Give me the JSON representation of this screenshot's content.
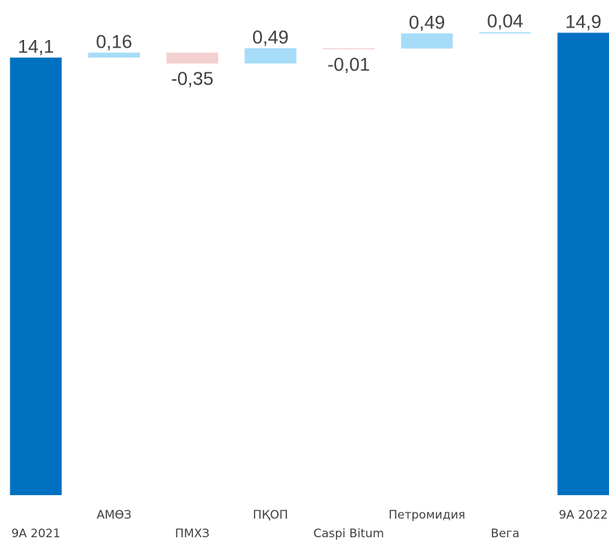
{
  "chart_data": {
    "type": "waterfall",
    "title": "",
    "xlabel": "",
    "ylabel": "",
    "ylim": [
      0,
      14.9
    ],
    "grid": false,
    "legend": "none",
    "categories": [
      "9A 2021",
      "АМӨЗ",
      "ПМХЗ",
      "ПҚОП",
      "Caspi Bitum",
      "Петромидия",
      "Вега",
      "9A 2022"
    ],
    "values": [
      14.1,
      0.16,
      -0.35,
      0.49,
      -0.01,
      0.49,
      0.04,
      14.9
    ],
    "kinds": [
      "total",
      "delta",
      "delta",
      "delta",
      "delta",
      "delta",
      "delta",
      "total"
    ],
    "value_labels": [
      "14,1",
      "0,16",
      "-0,35",
      "0,49",
      "-0,01",
      "0,49",
      "0,04",
      "14,9"
    ],
    "colors": {
      "total": "#0070C0",
      "increase": "#A6DCF8",
      "decrease": "#F3D0D0",
      "text": "#404040"
    }
  }
}
